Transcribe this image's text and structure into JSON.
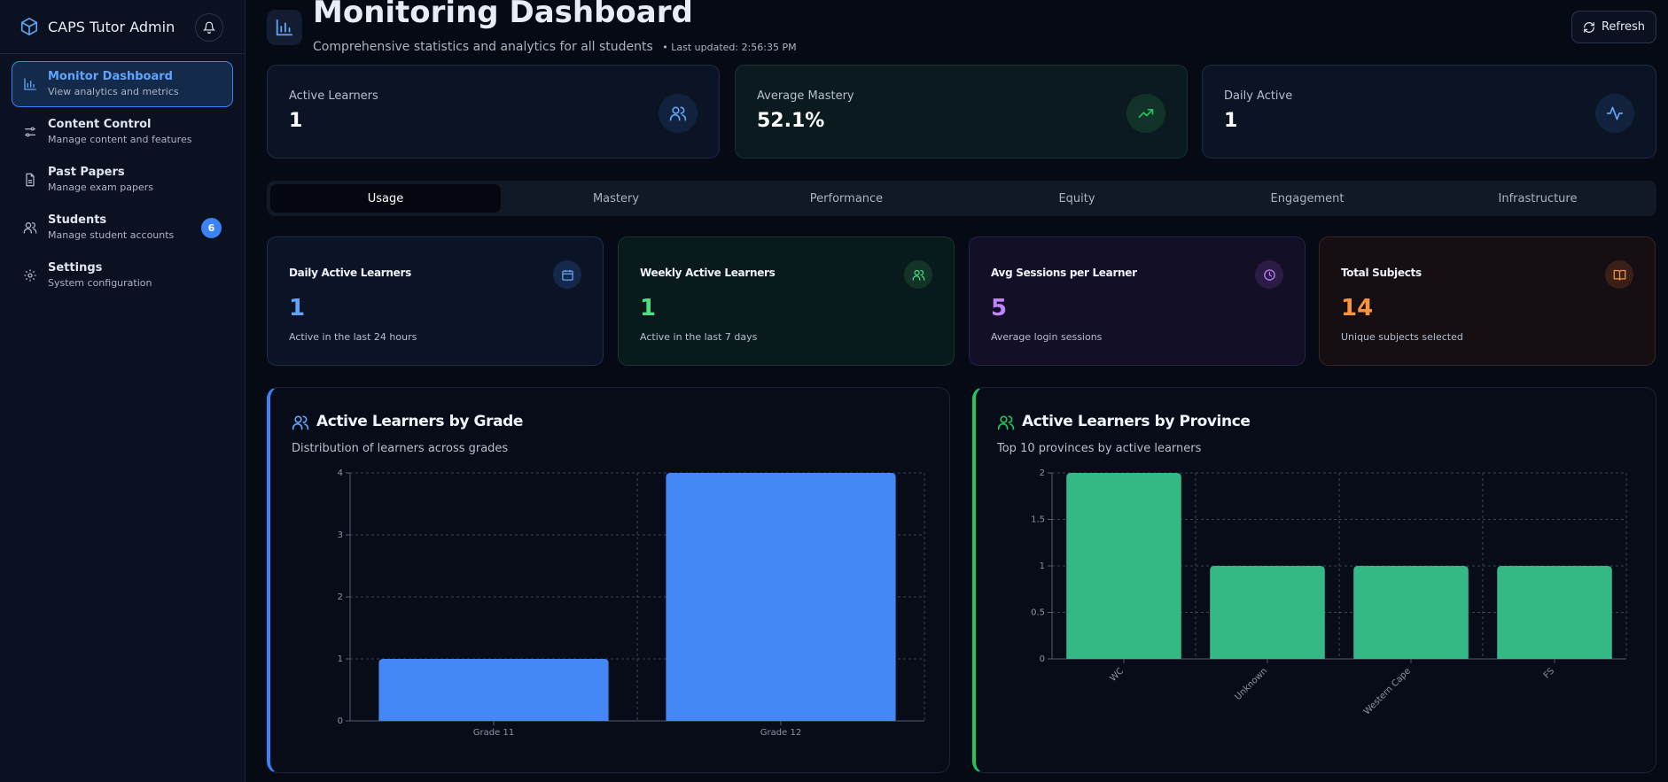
{
  "sidebar": {
    "title": "CAPS Tutor Admin",
    "items": [
      {
        "label": "Monitor Dashboard",
        "sub": "View analytics and metrics"
      },
      {
        "label": "Content Control",
        "sub": "Manage content and features"
      },
      {
        "label": "Past Papers",
        "sub": "Manage exam papers"
      },
      {
        "label": "Students",
        "sub": "Manage student accounts",
        "badge": "6"
      },
      {
        "label": "Settings",
        "sub": "System configuration"
      }
    ]
  },
  "header": {
    "title": "Monitoring Dashboard",
    "subtitle": "Comprehensive statistics and analytics for all students",
    "updated": "• Last updated: 2:56:35 PM",
    "refresh_label": "Refresh"
  },
  "kpis": [
    {
      "label": "Active Learners",
      "value": "1",
      "icon": "users-icon"
    },
    {
      "label": "Average Mastery",
      "value": "52.1%",
      "icon": "trending-up-icon"
    },
    {
      "label": "Daily Active",
      "value": "1",
      "icon": "activity-icon"
    }
  ],
  "tabs": [
    "Usage",
    "Mastery",
    "Performance",
    "Equity",
    "Engagement",
    "Infrastructure"
  ],
  "active_tab": "Usage",
  "metrics": [
    {
      "label": "Daily Active Learners",
      "value": "1",
      "sub": "Active in the last 24 hours",
      "color": "#60a5fa",
      "icon": "calendar-icon"
    },
    {
      "label": "Weekly Active Learners",
      "value": "1",
      "sub": "Active in the last 7 days",
      "color": "#4ade80",
      "icon": "users-icon"
    },
    {
      "label": "Avg Sessions per Learner",
      "value": "5",
      "sub": "Average login sessions",
      "color": "#c084fc",
      "icon": "clock-icon"
    },
    {
      "label": "Total Subjects",
      "value": "14",
      "sub": "Unique subjects selected",
      "color": "#fb923c",
      "icon": "book-icon"
    }
  ],
  "panels": {
    "grade": {
      "title": "Active Learners by Grade",
      "subtitle": "Distribution of learners across grades"
    },
    "province": {
      "title": "Active Learners by Province",
      "subtitle": "Top 10 provinces by active learners"
    }
  },
  "chart_data": [
    {
      "type": "bar",
      "title": "Active Learners by Grade",
      "categories": [
        "Grade 11",
        "Grade 12"
      ],
      "values": [
        1,
        4
      ],
      "ylim": [
        0,
        4
      ],
      "yticks": [
        0,
        1,
        2,
        3,
        4
      ],
      "grid": true,
      "color": "#4388f5"
    },
    {
      "type": "bar",
      "title": "Active Learners by Province",
      "categories": [
        "WC",
        "Unknown",
        "Western Cape",
        "FS"
      ],
      "values": [
        2,
        1,
        1,
        1
      ],
      "ylim": [
        0,
        2
      ],
      "yticks": [
        0,
        0.5,
        1,
        1.5,
        2
      ],
      "grid": true,
      "color": "#34b985"
    }
  ]
}
